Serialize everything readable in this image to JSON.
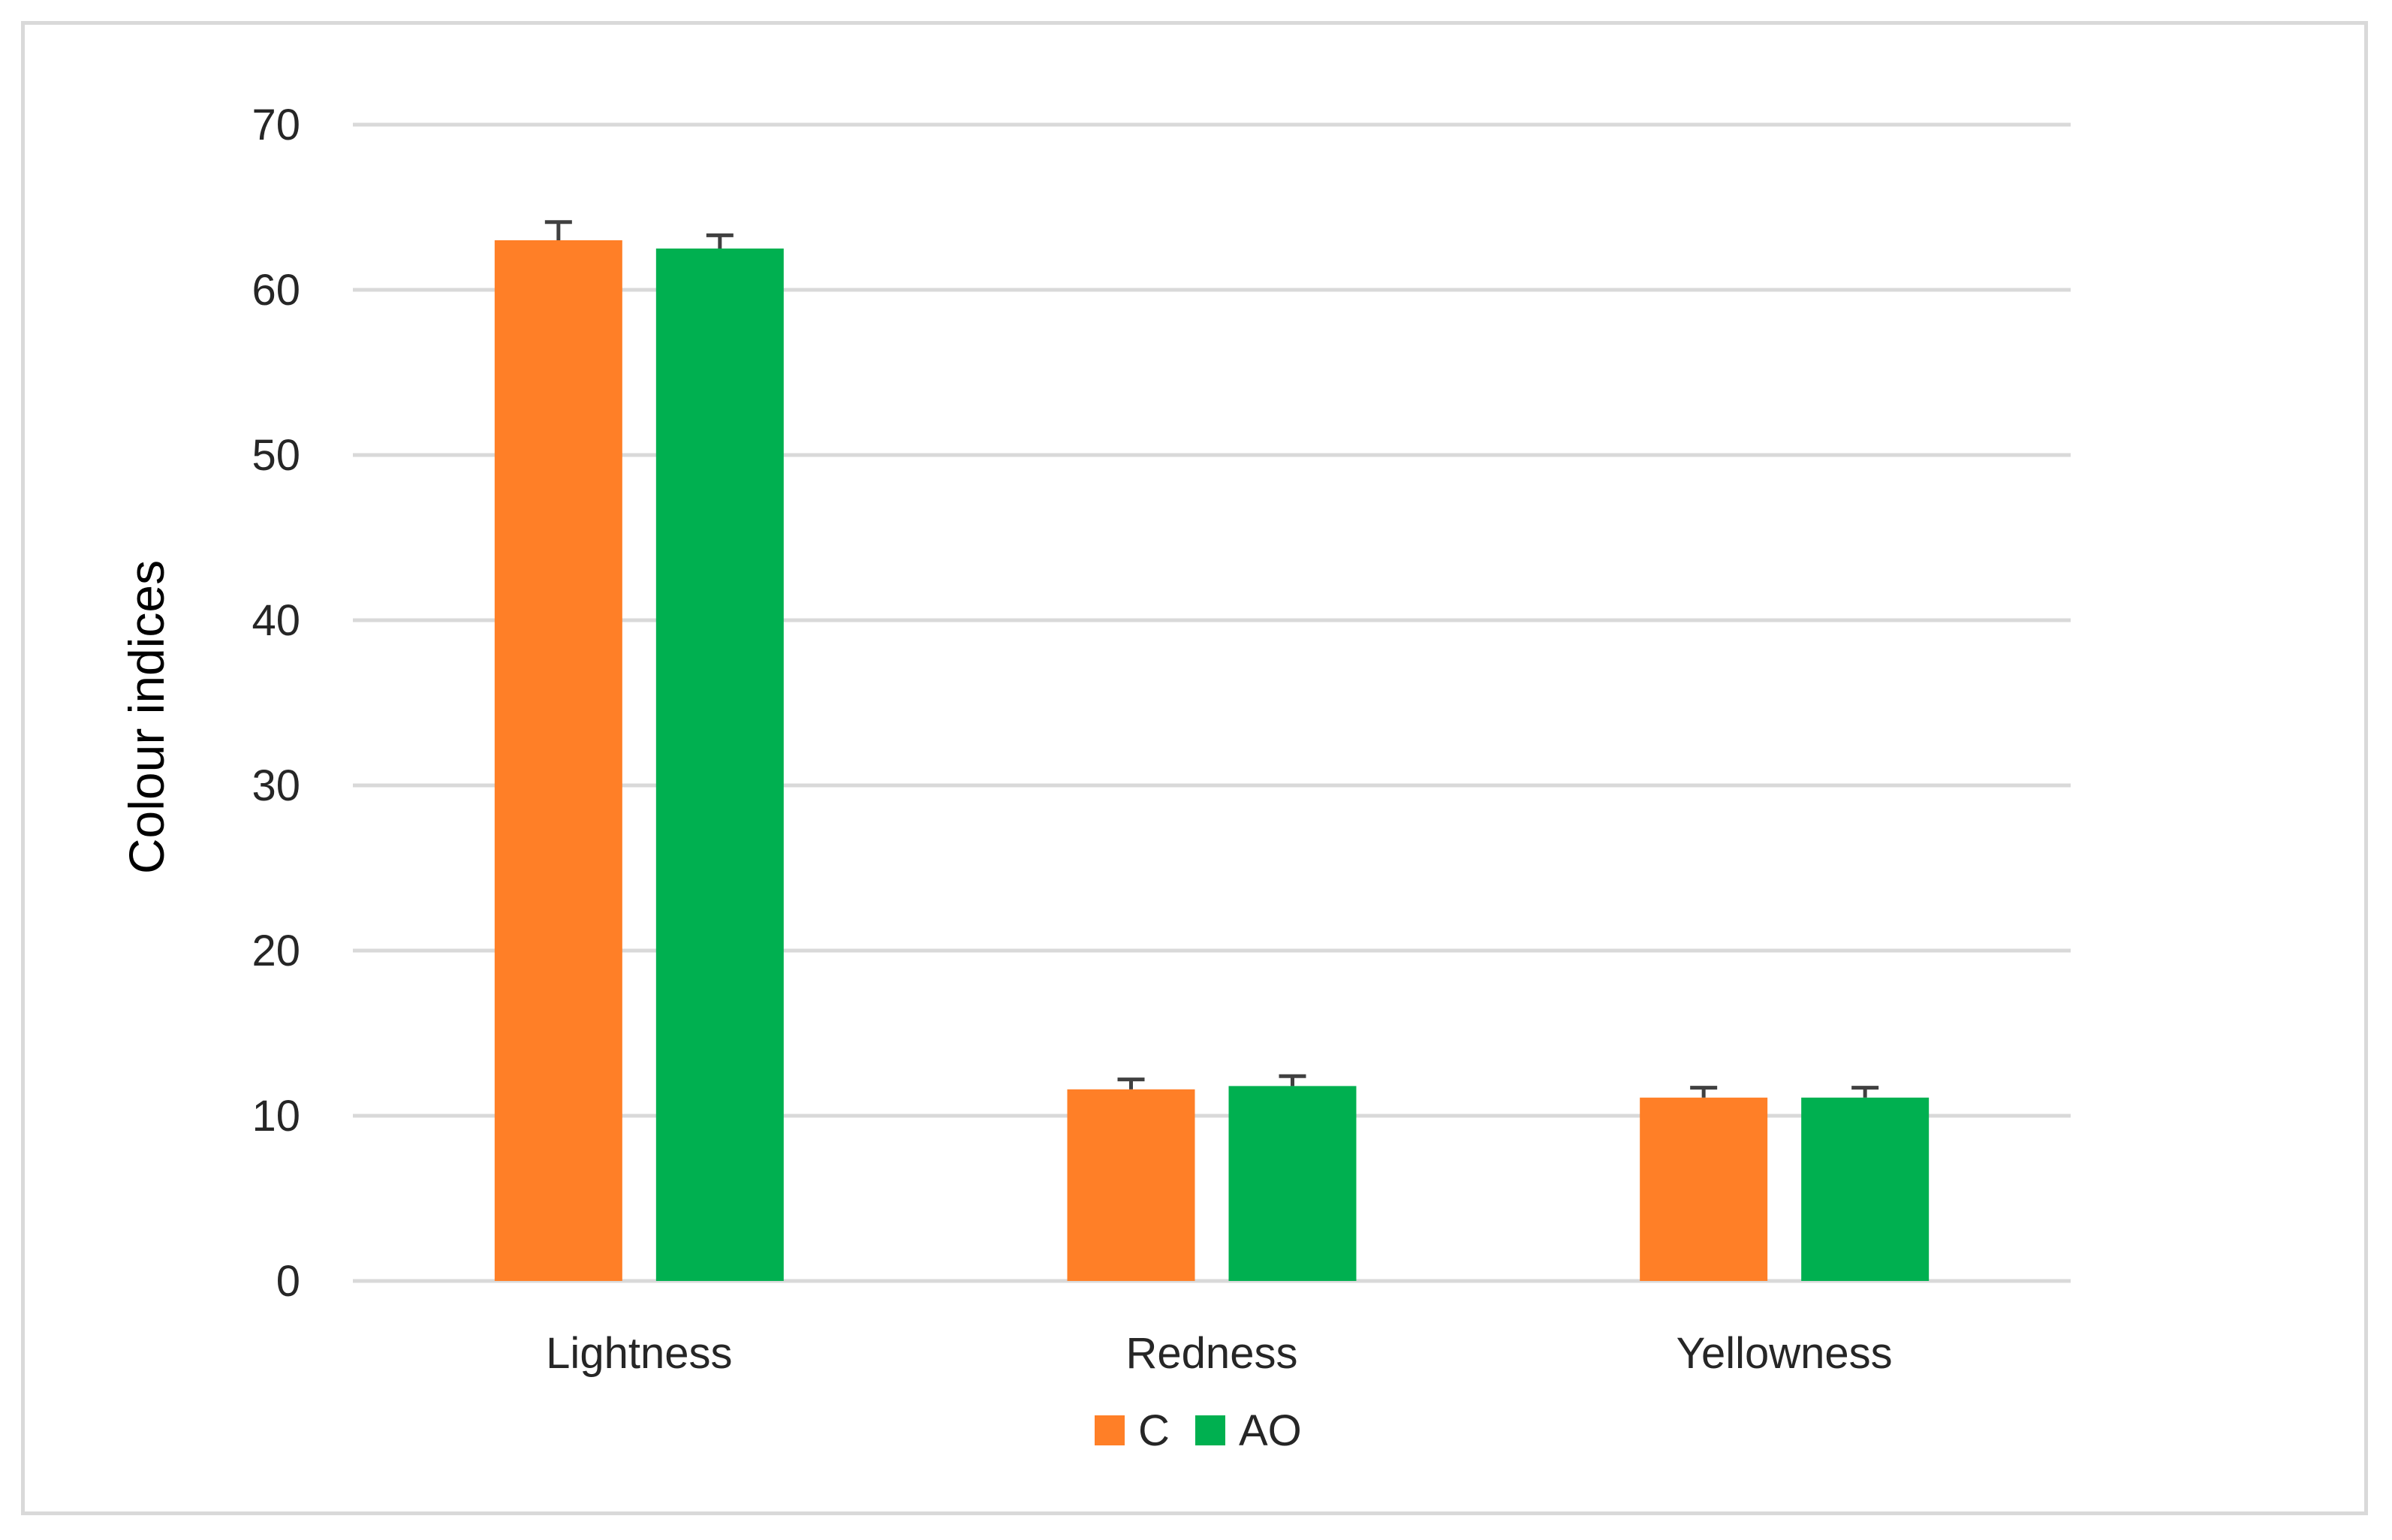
{
  "chart_data": {
    "type": "bar",
    "title": "",
    "xlabel": "",
    "ylabel": "Colour indices",
    "ylim": [
      0,
      70
    ],
    "yticks": [
      0,
      10,
      20,
      30,
      40,
      50,
      60,
      70
    ],
    "grid": true,
    "legend_position": "bottom",
    "categories": [
      "Lightness",
      "Redness",
      "Yellowness"
    ],
    "series": [
      {
        "name": "C",
        "color": "#FF7F27",
        "values": [
          63.0,
          11.6,
          11.1
        ],
        "errors": [
          1.1,
          0.6,
          0.6
        ]
      },
      {
        "name": "AO",
        "color": "#00B050",
        "values": [
          62.5,
          11.8,
          11.1
        ],
        "errors": [
          0.8,
          0.6,
          0.6
        ]
      }
    ],
    "error_bar_color": "#404040"
  }
}
